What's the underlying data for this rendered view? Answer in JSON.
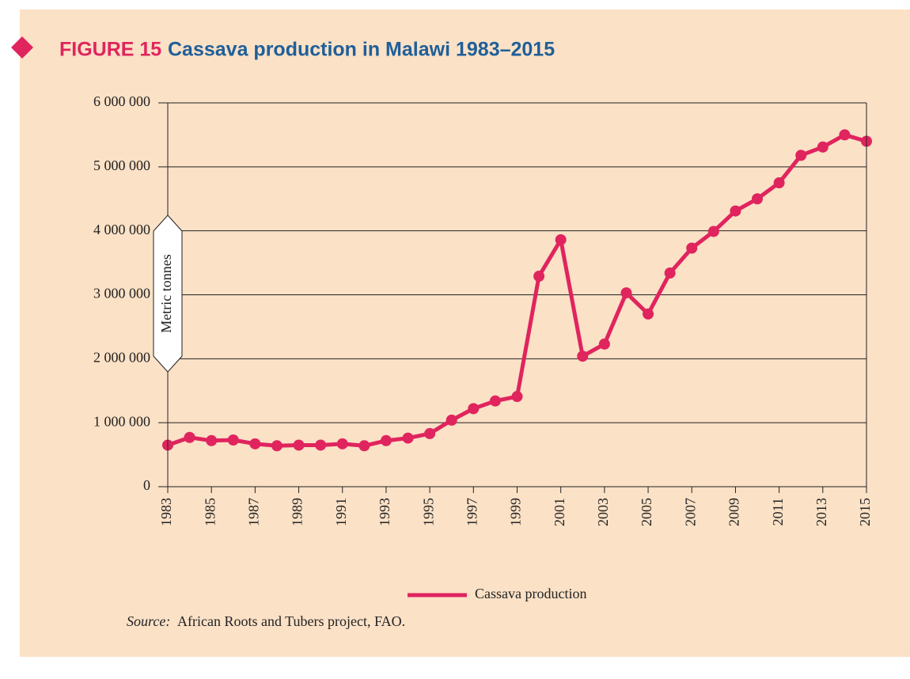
{
  "chart_data": {
    "type": "line",
    "figure_label": "FIGURE 15",
    "title": "Cassava production in Malawi 1983–2015",
    "y_label": "Metric tonnes",
    "x": [
      1983,
      1984,
      1985,
      1986,
      1987,
      1988,
      1989,
      1990,
      1991,
      1992,
      1993,
      1994,
      1995,
      1996,
      1997,
      1998,
      1999,
      2000,
      2001,
      2002,
      2003,
      2004,
      2005,
      2006,
      2007,
      2008,
      2009,
      2010,
      2011,
      2012,
      2013,
      2014,
      2015
    ],
    "series": [
      {
        "name": "Cassava production",
        "color": "#e0245e",
        "values": [
          650000,
          770000,
          720000,
          730000,
          670000,
          640000,
          650000,
          650000,
          670000,
          640000,
          720000,
          760000,
          830000,
          1040000,
          1220000,
          1340000,
          1410000,
          3290000,
          3860000,
          2040000,
          2230000,
          3030000,
          2700000,
          3340000,
          3730000,
          3990000,
          4310000,
          4500000,
          4750000,
          5180000,
          5310000,
          5500000,
          5400000
        ]
      }
    ],
    "xlim": [
      1983,
      2015
    ],
    "xticks": [
      1983,
      1985,
      1987,
      1989,
      1991,
      1993,
      1995,
      1997,
      1999,
      2001,
      2003,
      2005,
      2007,
      2009,
      2011,
      2013,
      2015
    ],
    "ylim": [
      0,
      6000000
    ],
    "yticks": [
      0,
      {
        "value": 1000000,
        "label": "1 000 000"
      },
      {
        "value": 2000000,
        "label": "2 000 000"
      },
      {
        "value": 3000000,
        "label": "3 000 000"
      },
      {
        "value": 4000000,
        "label": "4 000 000"
      },
      {
        "value": 5000000,
        "label": "5 000 000"
      },
      {
        "value": 6000000,
        "label": "6 000 000"
      }
    ],
    "grid": true,
    "source_label": "Source:",
    "source_text": "African Roots and Tubers project, FAO."
  }
}
